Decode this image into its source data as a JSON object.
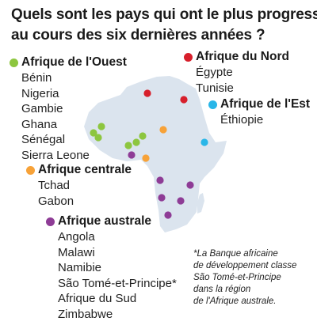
{
  "title": {
    "line1": "Quels sont les pays qui ont le plus progressé",
    "line2": "au cours des six dernières années ?"
  },
  "colors": {
    "west": "#8dc63f",
    "north": "#d71f2b",
    "east": "#29b6e8",
    "central": "#f7a238",
    "south": "#8e3c96",
    "land": "#dbe4ee"
  },
  "regions": {
    "west": {
      "name": "Afrique de l'Ouest",
      "countries": [
        "Bénin",
        "Nigeria",
        "Gambie",
        "Ghana",
        "Sénégal",
        "Sierra Leone"
      ]
    },
    "north": {
      "name": "Afrique du Nord",
      "countries": [
        "Égypte",
        "Tunisie"
      ]
    },
    "east": {
      "name": "Afrique de l'Est",
      "countries": [
        "Éthiopie"
      ]
    },
    "central": {
      "name": "Afrique centrale",
      "countries": [
        "Tchad",
        "Gabon"
      ]
    },
    "south": {
      "name": "Afrique australe",
      "countries": [
        "Angola",
        "Malawi",
        "Namibie",
        "São Tomé-et-Principe*",
        "Afrique du Sud",
        "Zimbabwe"
      ]
    }
  },
  "note": {
    "line1": "*La Banque africaine",
    "line2": "de développement classe",
    "line3": "São Tomé-et-Principe",
    "line4": "dans la région",
    "line5": "de l'Afrique australe."
  }
}
